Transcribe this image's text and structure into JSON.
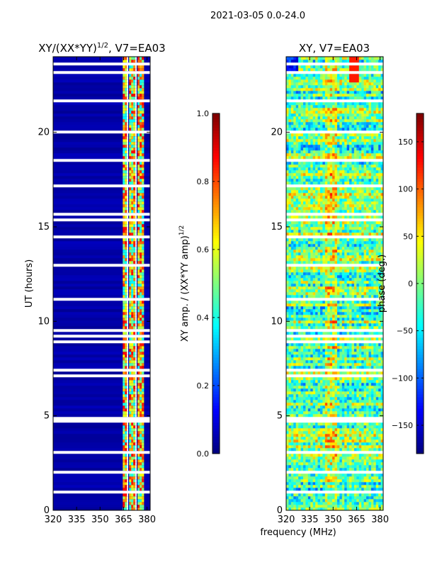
{
  "suptitle": "2021-03-05 0.0-24.0",
  "chart_data": [
    {
      "type": "heatmap",
      "title": "XY/(XX*YY)",
      "title_exp": "1/2",
      "title_suffix": ", V7=EA03",
      "xlabel": "",
      "ylabel": "UT (hours)",
      "xlim": [
        320,
        382
      ],
      "ylim": [
        0,
        24
      ],
      "xticks": [
        320,
        335,
        350,
        365,
        380
      ],
      "yticks": [
        0,
        5,
        10,
        15,
        20
      ],
      "colormap": "jet",
      "colorbar": {
        "label": "XY amp. / (XX*YY amp)",
        "label_exp": "1/2",
        "range": [
          0.0,
          1.0
        ],
        "ticks": [
          "0.0",
          "0.2",
          "0.4",
          "0.6",
          "0.8",
          "1.0"
        ],
        "tick_values": [
          0.0,
          0.2,
          0.4,
          0.6,
          0.8,
          1.0
        ]
      }
    },
    {
      "type": "heatmap",
      "title": "XY, V7=EA03",
      "xlabel": "frequency (MHz)",
      "ylabel": "",
      "xlim": [
        320,
        382
      ],
      "ylim": [
        0,
        24
      ],
      "xticks": [
        320,
        335,
        350,
        365,
        380
      ],
      "yticks": [
        0,
        5,
        10,
        15,
        20
      ],
      "colormap": "jet",
      "colorbar": {
        "label": "phase (deg.)",
        "range": [
          -180,
          180
        ],
        "ticks": [
          "−150",
          "−100",
          "−50",
          "0",
          "50",
          "100",
          "150"
        ],
        "tick_values": [
          -150,
          -100,
          -50,
          0,
          50,
          100,
          150
        ]
      }
    }
  ]
}
